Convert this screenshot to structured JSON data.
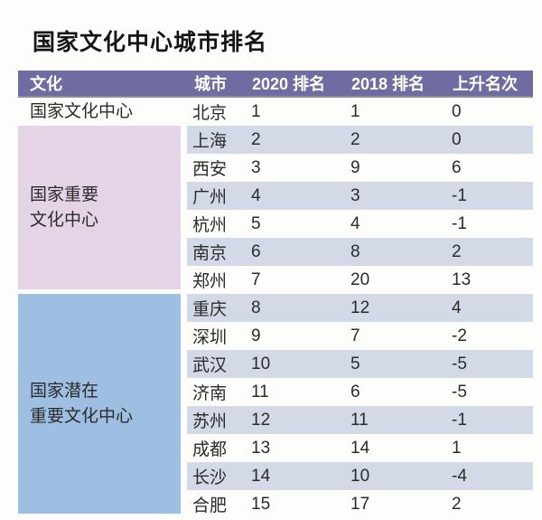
{
  "title": "国家文化中心城市排名",
  "colors": {
    "header_bg": "#6e6ca0",
    "header_text": "#ffffff",
    "row_stripe": "#d4d9e8",
    "tier_important_bg": "#e5d4e6",
    "tier_potential_bg": "#9ebfe2",
    "header_divider": "#8f8f94",
    "body_text": "#2b2b2b"
  },
  "table": {
    "headers": [
      "文化",
      "城市",
      "2020 排名",
      "2018 排名",
      "上升名次"
    ],
    "sections": [
      {
        "tier": "国家文化中心",
        "label_lines": [
          "国家文化中心"
        ],
        "rows": [
          {
            "city": "北京",
            "rank2020": 1,
            "rank2018": 1,
            "change": 0
          }
        ]
      },
      {
        "tier": "国家重要文化中心",
        "label_lines": [
          "国家重要",
          "文化中心"
        ],
        "rows": [
          {
            "city": "上海",
            "rank2020": 2,
            "rank2018": 2,
            "change": 0
          },
          {
            "city": "西安",
            "rank2020": 3,
            "rank2018": 9,
            "change": 6
          },
          {
            "city": "广州",
            "rank2020": 4,
            "rank2018": 3,
            "change": -1
          },
          {
            "city": "杭州",
            "rank2020": 5,
            "rank2018": 4,
            "change": -1
          },
          {
            "city": "南京",
            "rank2020": 6,
            "rank2018": 8,
            "change": 2
          },
          {
            "city": "郑州",
            "rank2020": 7,
            "rank2018": 20,
            "change": 13
          }
        ]
      },
      {
        "tier": "国家潜在重要文化中心",
        "label_lines": [
          "国家潜在",
          "重要文化中心"
        ],
        "rows": [
          {
            "city": "重庆",
            "rank2020": 8,
            "rank2018": 12,
            "change": 4
          },
          {
            "city": "深圳",
            "rank2020": 9,
            "rank2018": 7,
            "change": -2
          },
          {
            "city": "武汉",
            "rank2020": 10,
            "rank2018": 5,
            "change": -5
          },
          {
            "city": "济南",
            "rank2020": 11,
            "rank2018": 6,
            "change": -5
          },
          {
            "city": "苏州",
            "rank2020": 12,
            "rank2018": 11,
            "change": -1
          },
          {
            "city": "成都",
            "rank2020": 13,
            "rank2018": 14,
            "change": 1
          },
          {
            "city": "长沙",
            "rank2020": 14,
            "rank2018": 10,
            "change": -4
          },
          {
            "city": "合肥",
            "rank2020": 15,
            "rank2018": 17,
            "change": 2
          }
        ]
      }
    ]
  },
  "chart_data": {
    "type": "table",
    "title": "国家文化中心城市排名",
    "columns": [
      "文化",
      "城市",
      "2020 排名",
      "2018 排名",
      "上升名次"
    ],
    "rows": [
      [
        "国家文化中心",
        "北京",
        1,
        1,
        0
      ],
      [
        "国家重要文化中心",
        "上海",
        2,
        2,
        0
      ],
      [
        "国家重要文化中心",
        "西安",
        3,
        9,
        6
      ],
      [
        "国家重要文化中心",
        "广州",
        4,
        3,
        -1
      ],
      [
        "国家重要文化中心",
        "杭州",
        5,
        4,
        -1
      ],
      [
        "国家重要文化中心",
        "南京",
        6,
        8,
        2
      ],
      [
        "国家重要文化中心",
        "郑州",
        7,
        20,
        13
      ],
      [
        "国家潜在重要文化中心",
        "重庆",
        8,
        12,
        4
      ],
      [
        "国家潜在重要文化中心",
        "深圳",
        9,
        7,
        -2
      ],
      [
        "国家潜在重要文化中心",
        "武汉",
        10,
        5,
        -5
      ],
      [
        "国家潜在重要文化中心",
        "济南",
        11,
        6,
        -5
      ],
      [
        "国家潜在重要文化中心",
        "苏州",
        12,
        11,
        -1
      ],
      [
        "国家潜在重要文化中心",
        "成都",
        13,
        14,
        1
      ],
      [
        "国家潜在重要文化中心",
        "长沙",
        14,
        10,
        -4
      ],
      [
        "国家潜在重要文化中心",
        "合肥",
        15,
        17,
        2
      ]
    ]
  }
}
